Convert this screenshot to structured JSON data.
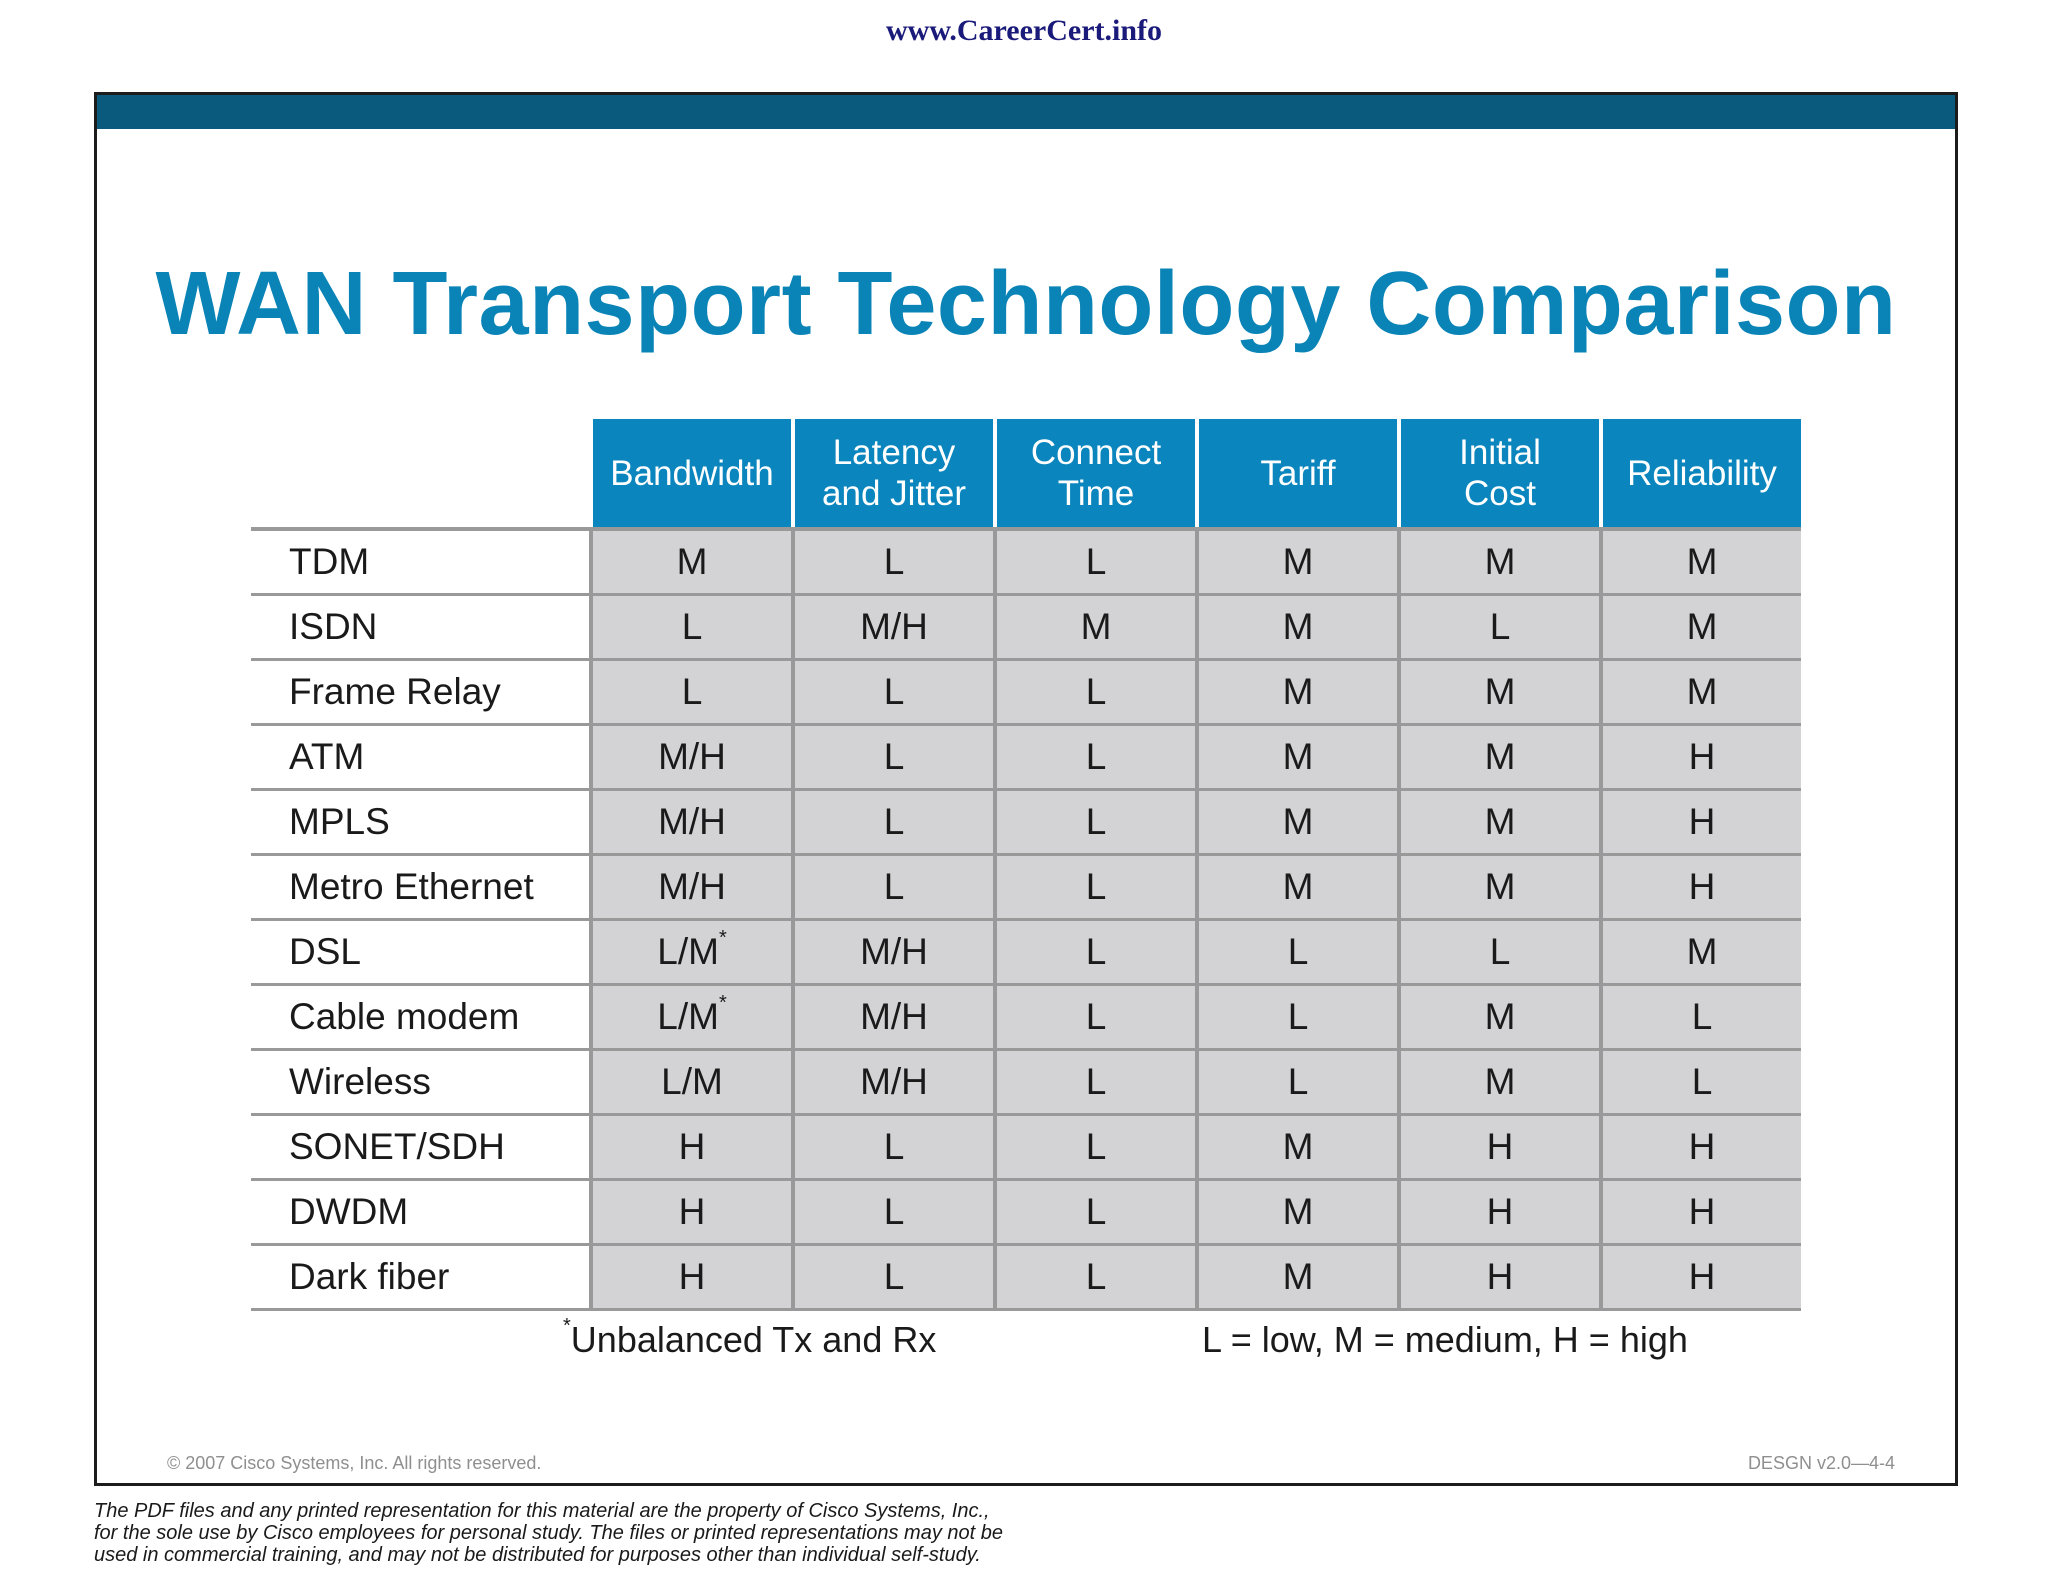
{
  "watermark": "www.CareerCert.info",
  "slide": {
    "title": "WAN Transport Technology Comparison",
    "table": {
      "headers": [
        [
          "Bandwidth"
        ],
        [
          "Latency",
          "and Jitter"
        ],
        [
          "Connect",
          "Time"
        ],
        [
          "Tariff"
        ],
        [
          "Initial",
          "Cost"
        ],
        [
          "Reliability"
        ]
      ],
      "rows": [
        {
          "label": "TDM",
          "values": [
            "M",
            "L",
            "L",
            "M",
            "M",
            "M"
          ]
        },
        {
          "label": "ISDN",
          "values": [
            "L",
            "M/H",
            "M",
            "M",
            "L",
            "M"
          ]
        },
        {
          "label": "Frame Relay",
          "values": [
            "L",
            "L",
            "L",
            "M",
            "M",
            "M"
          ]
        },
        {
          "label": "ATM",
          "values": [
            "M/H",
            "L",
            "L",
            "M",
            "M",
            "H"
          ]
        },
        {
          "label": "MPLS",
          "values": [
            "M/H",
            "L",
            "L",
            "M",
            "M",
            "H"
          ]
        },
        {
          "label": "Metro Ethernet",
          "values": [
            "M/H",
            "L",
            "L",
            "M",
            "M",
            "H"
          ]
        },
        {
          "label": "DSL",
          "values": [
            "L/M",
            "M/H",
            "L",
            "L",
            "L",
            "M"
          ],
          "mark": "*"
        },
        {
          "label": "Cable modem",
          "values": [
            "L/M",
            "M/H",
            "L",
            "L",
            "M",
            "L"
          ],
          "mark": "*"
        },
        {
          "label": "Wireless",
          "values": [
            "L/M",
            "M/H",
            "L",
            "L",
            "M",
            "L"
          ]
        },
        {
          "label": "SONET/SDH",
          "values": [
            "H",
            "L",
            "L",
            "M",
            "H",
            "H"
          ]
        },
        {
          "label": "DWDM",
          "values": [
            "H",
            "L",
            "L",
            "M",
            "H",
            "H"
          ]
        },
        {
          "label": "Dark fiber",
          "values": [
            "H",
            "L",
            "L",
            "M",
            "H",
            "H"
          ]
        }
      ]
    },
    "footnote_mark": "*",
    "footnote_text": "Unbalanced Tx and Rx",
    "legend": "L = low, M = medium, H = high",
    "copyright": "© 2007 Cisco Systems, Inc. All rights reserved.",
    "course_code": "DESGN v2.0—4-4"
  },
  "disclaimer": [
    "The PDF files and any printed representation for this material are the property of Cisco Systems, Inc.,",
    "for the sole use by Cisco employees for personal study. The files or printed representations may not be",
    "used in commercial training, and may not be distributed for purposes other than individual self-study."
  ],
  "colors": {
    "top_bar": "#0a5a7e",
    "title": "#0a84b6",
    "header_fill": "#0a85bd",
    "cell_fill": "#d3d2d4"
  }
}
